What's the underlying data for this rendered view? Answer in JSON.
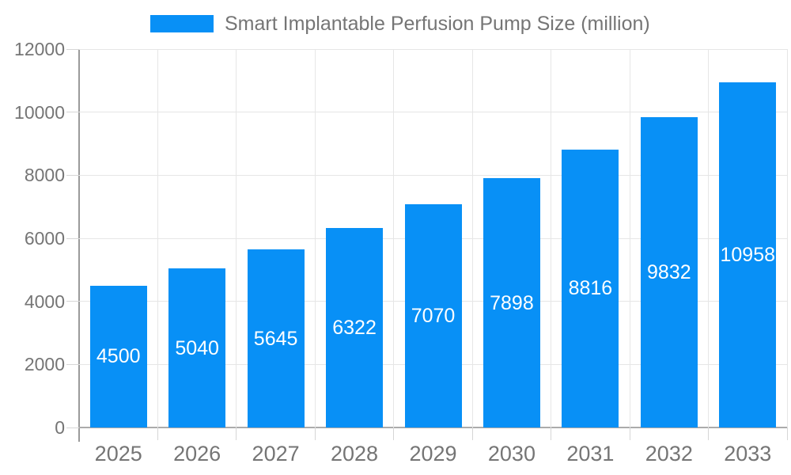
{
  "page": {
    "background_color": "#ffffff"
  },
  "legend": {
    "label": "Smart Implantable Perfusion Pump Size (million)",
    "swatch_color": "#0890f6",
    "position": "top"
  },
  "chart_data": {
    "type": "bar",
    "title": "Smart Implantable Perfusion Pump Size (million)",
    "categories": [
      "2025",
      "2026",
      "2027",
      "2028",
      "2029",
      "2030",
      "2031",
      "2032",
      "2033"
    ],
    "series": [
      {
        "name": "Smart Implantable Perfusion Pump Size (million)",
        "values": [
          4500,
          5040,
          5645,
          6322,
          7070,
          7898,
          8816,
          9832,
          10958
        ]
      }
    ],
    "xlabel": "",
    "ylabel": "",
    "ylim": [
      0,
      12000
    ],
    "y_ticks": [
      0,
      2000,
      4000,
      6000,
      8000,
      10000,
      12000
    ],
    "grid": true,
    "value_labels": "inside-center",
    "legend_position": "top"
  },
  "colors": {
    "bar": "#0890f6",
    "value_label": "#ffffff",
    "gridline": "#e6e6e6",
    "axis_line": "#9a9a9a",
    "tick_mark": "#d6d6d6",
    "tick_label": "#757575",
    "legend_text": "#757575"
  }
}
